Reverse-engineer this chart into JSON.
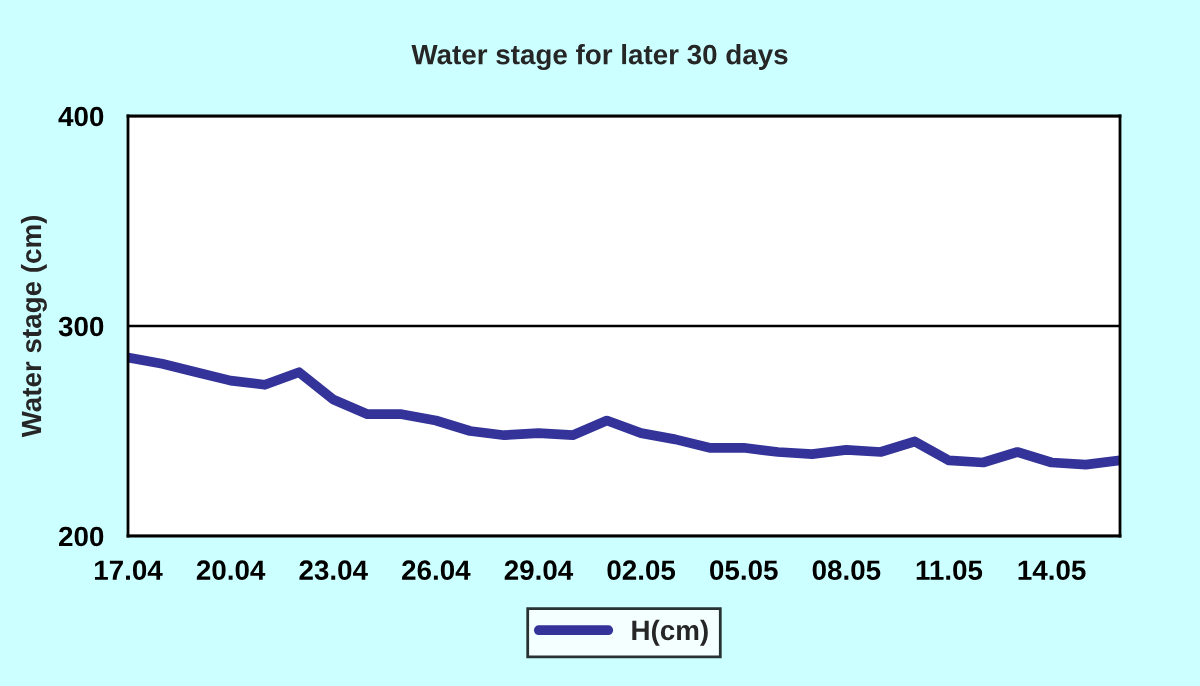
{
  "chart_data": {
    "type": "line",
    "title": "Water stage for later 30 days",
    "ylabel": "Water stage (cm)",
    "categories": [
      "17.04",
      null,
      null,
      "20.04",
      null,
      null,
      "23.04",
      null,
      null,
      "26.04",
      null,
      null,
      "29.04",
      null,
      null,
      "02.05",
      null,
      null,
      "05.05",
      null,
      null,
      "08.05",
      null,
      null,
      "11.05",
      null,
      null,
      "14.05",
      null,
      null
    ],
    "series": [
      {
        "name": "H(cm)",
        "color": "#333399",
        "values": [
          285,
          282,
          278,
          274,
          272,
          278,
          265,
          258,
          258,
          255,
          250,
          248,
          249,
          248,
          255,
          249,
          246,
          242,
          242,
          240,
          239,
          241,
          240,
          245,
          236,
          235,
          240,
          235,
          234,
          236
        ]
      }
    ],
    "ylim": [
      200,
      400
    ],
    "yticks": [
      200,
      300,
      400
    ],
    "grid": "y",
    "legend": "bottom",
    "marker": "none",
    "line_style": "solid"
  }
}
